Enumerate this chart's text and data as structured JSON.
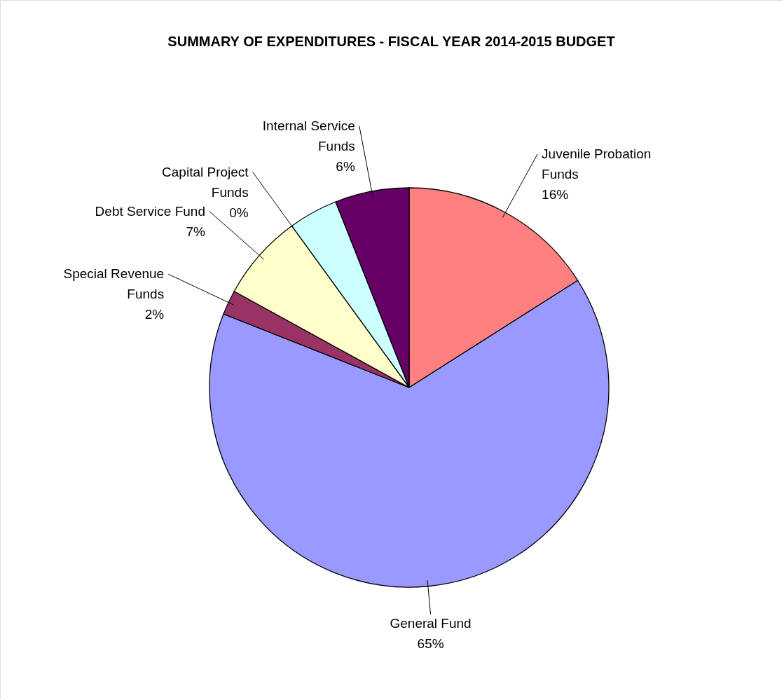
{
  "chart_data": {
    "type": "pie",
    "title": "SUMMARY OF EXPENDITURES - FISCAL YEAR 2014-2015 BUDGET",
    "categories": [
      "Juvenile Probation Funds",
      "General Fund",
      "Special Revenue Funds",
      "Debt Service Fund",
      "Capital Project Funds",
      null,
      "Internal Service Funds"
    ],
    "values": [
      16,
      65,
      2,
      7,
      0,
      4,
      6
    ],
    "colors": [
      "#ff8080",
      "#9999ff",
      "#993366",
      "#ffffcc",
      "#ccffff",
      "#ccffff",
      "#660066"
    ],
    "value_labels": [
      "16%",
      "65%",
      "2%",
      "7%",
      "0%",
      null,
      "6%"
    ]
  }
}
